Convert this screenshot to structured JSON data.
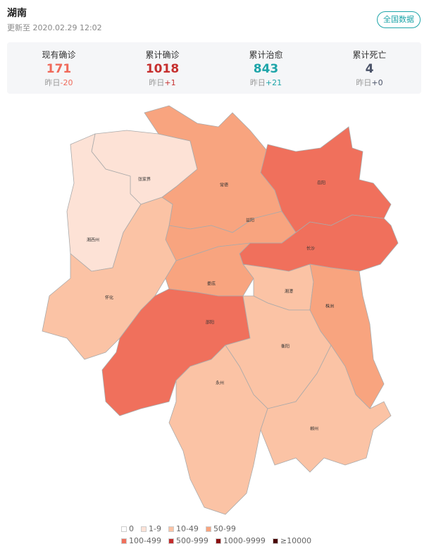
{
  "header": {
    "title": "湖南",
    "update": "更新至 2020.02.29 12:02",
    "button": "全国数据"
  },
  "stats": [
    {
      "label": "现有确诊",
      "value": 171,
      "delta_label": "昨日",
      "delta": "-20",
      "color": "#f06a5b"
    },
    {
      "label": "累计确诊",
      "value": 1018,
      "delta_label": "昨日",
      "delta": "+1",
      "color": "#c6302f"
    },
    {
      "label": "累计治愈",
      "value": 843,
      "delta_label": "昨日",
      "delta": "+21",
      "color": "#1ea5a9"
    },
    {
      "label": "累计死亡",
      "value": 4,
      "delta_label": "昨日",
      "delta": "+0",
      "color": "#4a5268"
    }
  ],
  "map": {
    "regions": [
      {
        "label": "张家界",
        "color": "#fde2d6"
      },
      {
        "label": "湘西州",
        "color": "#fde2d6"
      },
      {
        "label": "常德",
        "color": "#f8a47f"
      },
      {
        "label": "岳阳",
        "color": "#f0705c"
      },
      {
        "label": "益阳",
        "color": "#f8a47f"
      },
      {
        "label": "长沙",
        "color": "#f0705c"
      },
      {
        "label": "怀化",
        "color": "#fbc3a5"
      },
      {
        "label": "娄底",
        "color": "#f8a47f"
      },
      {
        "label": "湘潭",
        "color": "#fbc3a5"
      },
      {
        "label": "株洲",
        "color": "#f8a47f"
      },
      {
        "label": "邵阳",
        "color": "#f0705c"
      },
      {
        "label": "衡阳",
        "color": "#fbc3a5"
      },
      {
        "label": "永州",
        "color": "#fbc3a5"
      },
      {
        "label": "郴州",
        "color": "#fbc3a5"
      }
    ]
  },
  "legend": [
    {
      "label": "0",
      "color": "#ffffff"
    },
    {
      "label": "1-9",
      "color": "#fde2d6"
    },
    {
      "label": "10-49",
      "color": "#fbc3a5"
    },
    {
      "label": "50-99",
      "color": "#f8a47f"
    },
    {
      "label": "100-499",
      "color": "#f0705c"
    },
    {
      "label": "500-999",
      "color": "#c42d2d"
    },
    {
      "label": "1000-9999",
      "color": "#8a0f10"
    },
    {
      "label": "≥10000",
      "color": "#4a0000"
    }
  ]
}
